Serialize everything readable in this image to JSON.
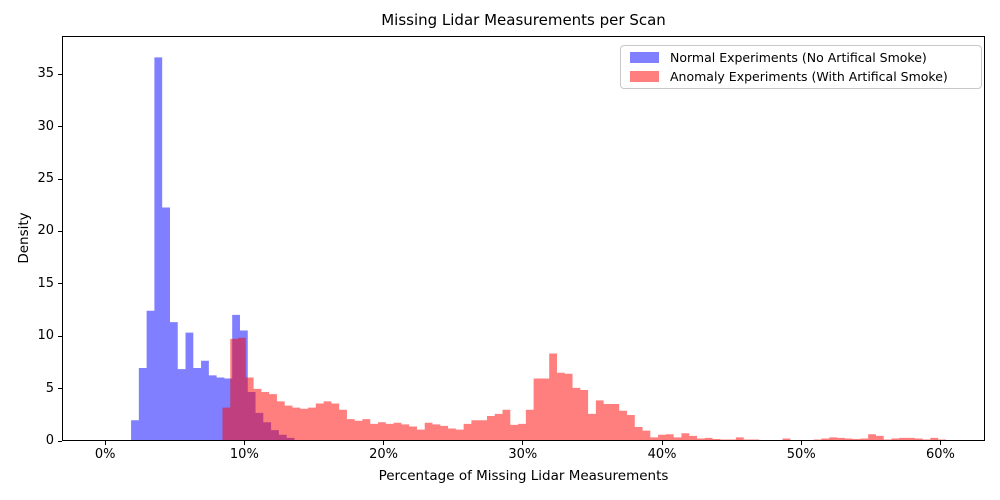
{
  "figure": {
    "background": "#ffffff"
  },
  "chart_data": {
    "type": "bar",
    "subtype": "overlaid-density-histograms",
    "title": "Missing Lidar Measurements per Scan",
    "xlabel": "Percentage of Missing Lidar Measurements",
    "ylabel": "Density",
    "xlim_pct": [
      -3.1,
      63.2
    ],
    "ylim": [
      0,
      38.65
    ],
    "grid": "off",
    "legend_position": "upper-right",
    "xticks": [
      {
        "value": 0,
        "label": "0%"
      },
      {
        "value": 10,
        "label": "10%"
      },
      {
        "value": 20,
        "label": "20%"
      },
      {
        "value": 30,
        "label": "30%"
      },
      {
        "value": 40,
        "label": "40%"
      },
      {
        "value": 50,
        "label": "50%"
      },
      {
        "value": 60,
        "label": "60%"
      }
    ],
    "yticks": [
      {
        "value": 0,
        "label": "0"
      },
      {
        "value": 5,
        "label": "5"
      },
      {
        "value": 10,
        "label": "10"
      },
      {
        "value": 15,
        "label": "15"
      },
      {
        "value": 20,
        "label": "20"
      },
      {
        "value": 25,
        "label": "25"
      },
      {
        "value": 30,
        "label": "30"
      },
      {
        "value": 35,
        "label": "35"
      }
    ],
    "series": [
      {
        "name": "Normal Experiments (No Artifical Smoke)",
        "color": "#0000ff",
        "opacity": 0.5,
        "bin_start_pct": 1.8,
        "bin_width_pct": 0.56,
        "densities": [
          1.9,
          6.9,
          12.4,
          36.7,
          22.3,
          11.3,
          6.8,
          10.3,
          6.9,
          7.6,
          6.2,
          6.0,
          5.9,
          12.0,
          10.5,
          4.6,
          2.6,
          1.7,
          0.95,
          0.5,
          0.2
        ]
      },
      {
        "name": "Anomaly Experiments (With Artifical Smoke)",
        "color": "#ff0000",
        "opacity": 0.5,
        "bin_start_pct": 8.38,
        "bin_width_pct": 0.56,
        "densities": [
          3.1,
          9.7,
          9.8,
          6.0,
          4.9,
          4.6,
          4.4,
          3.7,
          3.3,
          3.1,
          3.0,
          3.1,
          3.5,
          3.7,
          3.5,
          2.9,
          2.0,
          1.85,
          2.0,
          1.55,
          1.7,
          1.55,
          1.65,
          1.5,
          1.3,
          1.0,
          1.65,
          1.5,
          1.35,
          1.1,
          1.0,
          1.55,
          1.9,
          1.9,
          2.3,
          2.5,
          2.9,
          1.45,
          1.55,
          2.9,
          5.9,
          5.9,
          8.3,
          6.45,
          6.35,
          5.0,
          4.8,
          2.5,
          3.8,
          3.45,
          3.45,
          2.8,
          2.4,
          1.25,
          0.9,
          0.25,
          0.5,
          0.55,
          0.25,
          0.65,
          0.4,
          0.15,
          0.2,
          0.1,
          0.05,
          0.05,
          0.25,
          0.05,
          0.05,
          0,
          0,
          0,
          0.15,
          0,
          0,
          0,
          0.05,
          0.15,
          0.25,
          0.2,
          0.15,
          0.1,
          0.15,
          0.55,
          0.4,
          0.05,
          0.15,
          0.2,
          0.2,
          0.15,
          0.05,
          0.2,
          0.05
        ]
      }
    ]
  }
}
